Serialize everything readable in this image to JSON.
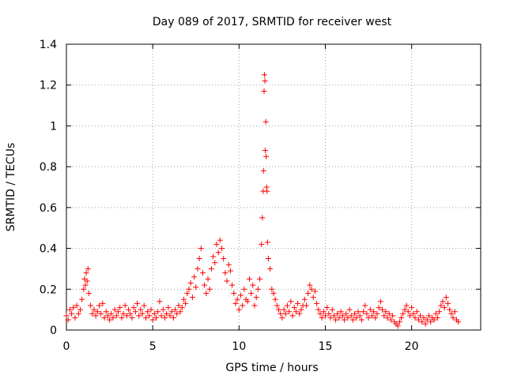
{
  "chart_data": {
    "type": "scatter",
    "title": "Day 089 of 2017, SRMTID for receiver west",
    "xlabel": "GPS time / hours",
    "ylabel": "SRMTID / TECUs",
    "xlim": [
      0,
      24
    ],
    "ylim": [
      0,
      1.4
    ],
    "x_ticks": [
      0,
      5,
      10,
      15,
      20
    ],
    "x_tick_labels": [
      "0",
      "5",
      "10",
      "15",
      "20"
    ],
    "y_ticks": [
      0,
      0.2,
      0.4,
      0.6,
      0.8,
      1.0,
      1.2,
      1.4
    ],
    "y_tick_labels": [
      "0",
      "0.2",
      "0.4",
      "0.6",
      "0.8",
      "1",
      "1.2",
      "1.4"
    ],
    "grid": true,
    "marker": "plus",
    "series": [
      {
        "name": "SRMTID",
        "color": "#ff0000",
        "points": [
          [
            0.0,
            0.07
          ],
          [
            0.1,
            0.05
          ],
          [
            0.2,
            0.1
          ],
          [
            0.3,
            0.08
          ],
          [
            0.4,
            0.11
          ],
          [
            0.5,
            0.06
          ],
          [
            0.6,
            0.12
          ],
          [
            0.7,
            0.08
          ],
          [
            0.8,
            0.1
          ],
          [
            0.9,
            0.15
          ],
          [
            1.0,
            0.2
          ],
          [
            1.05,
            0.25
          ],
          [
            1.1,
            0.22
          ],
          [
            1.15,
            0.28
          ],
          [
            1.2,
            0.24
          ],
          [
            1.25,
            0.3
          ],
          [
            1.3,
            0.18
          ],
          [
            1.4,
            0.12
          ],
          [
            1.5,
            0.08
          ],
          [
            1.6,
            0.1
          ],
          [
            1.7,
            0.07
          ],
          [
            1.8,
            0.09
          ],
          [
            1.9,
            0.12
          ],
          [
            2.0,
            0.08
          ],
          [
            2.1,
            0.13
          ],
          [
            2.2,
            0.06
          ],
          [
            2.3,
            0.09
          ],
          [
            2.4,
            0.07
          ],
          [
            2.5,
            0.05
          ],
          [
            2.6,
            0.08
          ],
          [
            2.7,
            0.06
          ],
          [
            2.8,
            0.1
          ],
          [
            2.9,
            0.07
          ],
          [
            3.0,
            0.09
          ],
          [
            3.1,
            0.11
          ],
          [
            3.2,
            0.06
          ],
          [
            3.3,
            0.08
          ],
          [
            3.4,
            0.12
          ],
          [
            3.5,
            0.07
          ],
          [
            3.6,
            0.1
          ],
          [
            3.7,
            0.08
          ],
          [
            3.8,
            0.06
          ],
          [
            3.9,
            0.11
          ],
          [
            4.0,
            0.09
          ],
          [
            4.1,
            0.13
          ],
          [
            4.2,
            0.07
          ],
          [
            4.3,
            0.1
          ],
          [
            4.4,
            0.08
          ],
          [
            4.5,
            0.12
          ],
          [
            4.6,
            0.06
          ],
          [
            4.7,
            0.09
          ],
          [
            4.8,
            0.07
          ],
          [
            4.9,
            0.1
          ],
          [
            5.0,
            0.05
          ],
          [
            5.1,
            0.08
          ],
          [
            5.2,
            0.06
          ],
          [
            5.3,
            0.09
          ],
          [
            5.4,
            0.14
          ],
          [
            5.5,
            0.07
          ],
          [
            5.6,
            0.1
          ],
          [
            5.7,
            0.06
          ],
          [
            5.8,
            0.08
          ],
          [
            5.9,
            0.11
          ],
          [
            6.0,
            0.07
          ],
          [
            6.1,
            0.09
          ],
          [
            6.2,
            0.06
          ],
          [
            6.3,
            0.1
          ],
          [
            6.4,
            0.08
          ],
          [
            6.5,
            0.12
          ],
          [
            6.6,
            0.09
          ],
          [
            6.7,
            0.11
          ],
          [
            6.8,
            0.15
          ],
          [
            6.9,
            0.13
          ],
          [
            7.0,
            0.18
          ],
          [
            7.1,
            0.2
          ],
          [
            7.2,
            0.23
          ],
          [
            7.3,
            0.16
          ],
          [
            7.4,
            0.26
          ],
          [
            7.5,
            0.21
          ],
          [
            7.6,
            0.3
          ],
          [
            7.7,
            0.35
          ],
          [
            7.8,
            0.4
          ],
          [
            7.9,
            0.28
          ],
          [
            8.0,
            0.22
          ],
          [
            8.1,
            0.18
          ],
          [
            8.2,
            0.25
          ],
          [
            8.3,
            0.2
          ],
          [
            8.4,
            0.3
          ],
          [
            8.5,
            0.36
          ],
          [
            8.6,
            0.33
          ],
          [
            8.7,
            0.42
          ],
          [
            8.8,
            0.38
          ],
          [
            8.9,
            0.44
          ],
          [
            9.0,
            0.4
          ],
          [
            9.1,
            0.35
          ],
          [
            9.2,
            0.28
          ],
          [
            9.3,
            0.24
          ],
          [
            9.4,
            0.32
          ],
          [
            9.5,
            0.29
          ],
          [
            9.6,
            0.22
          ],
          [
            9.7,
            0.18
          ],
          [
            9.8,
            0.13
          ],
          [
            9.9,
            0.15
          ],
          [
            10.0,
            0.1
          ],
          [
            10.1,
            0.17
          ],
          [
            10.2,
            0.12
          ],
          [
            10.3,
            0.2
          ],
          [
            10.4,
            0.15
          ],
          [
            10.5,
            0.14
          ],
          [
            10.6,
            0.25
          ],
          [
            10.7,
            0.18
          ],
          [
            10.8,
            0.22
          ],
          [
            10.9,
            0.12
          ],
          [
            11.0,
            0.16
          ],
          [
            11.1,
            0.2
          ],
          [
            11.2,
            0.25
          ],
          [
            11.3,
            0.42
          ],
          [
            11.35,
            0.55
          ],
          [
            11.4,
            0.68
          ],
          [
            11.42,
            0.78
          ],
          [
            11.45,
            1.17
          ],
          [
            11.47,
            1.25
          ],
          [
            11.5,
            1.22
          ],
          [
            11.52,
            0.88
          ],
          [
            11.55,
            1.02
          ],
          [
            11.57,
            0.85
          ],
          [
            11.6,
            0.7
          ],
          [
            11.62,
            0.68
          ],
          [
            11.65,
            0.43
          ],
          [
            11.7,
            0.35
          ],
          [
            11.8,
            0.3
          ],
          [
            11.9,
            0.2
          ],
          [
            12.0,
            0.18
          ],
          [
            12.1,
            0.15
          ],
          [
            12.2,
            0.12
          ],
          [
            12.3,
            0.1
          ],
          [
            12.4,
            0.08
          ],
          [
            12.5,
            0.06
          ],
          [
            12.6,
            0.1
          ],
          [
            12.7,
            0.08
          ],
          [
            12.8,
            0.12
          ],
          [
            12.9,
            0.09
          ],
          [
            13.0,
            0.14
          ],
          [
            13.1,
            0.07
          ],
          [
            13.2,
            0.11
          ],
          [
            13.3,
            0.09
          ],
          [
            13.4,
            0.13
          ],
          [
            13.5,
            0.08
          ],
          [
            13.6,
            0.1
          ],
          [
            13.7,
            0.12
          ],
          [
            13.8,
            0.15
          ],
          [
            13.9,
            0.12
          ],
          [
            14.0,
            0.18
          ],
          [
            14.1,
            0.22
          ],
          [
            14.2,
            0.2
          ],
          [
            14.3,
            0.16
          ],
          [
            14.4,
            0.19
          ],
          [
            14.5,
            0.13
          ],
          [
            14.6,
            0.1
          ],
          [
            14.7,
            0.08
          ],
          [
            14.8,
            0.06
          ],
          [
            14.9,
            0.09
          ],
          [
            15.0,
            0.07
          ],
          [
            15.1,
            0.11
          ],
          [
            15.2,
            0.08
          ],
          [
            15.3,
            0.06
          ],
          [
            15.4,
            0.1
          ],
          [
            15.5,
            0.07
          ],
          [
            15.6,
            0.05
          ],
          [
            15.7,
            0.08
          ],
          [
            15.8,
            0.06
          ],
          [
            15.9,
            0.09
          ],
          [
            16.0,
            0.07
          ],
          [
            16.1,
            0.05
          ],
          [
            16.2,
            0.08
          ],
          [
            16.3,
            0.06
          ],
          [
            16.4,
            0.1
          ],
          [
            16.5,
            0.07
          ],
          [
            16.6,
            0.05
          ],
          [
            16.7,
            0.08
          ],
          [
            16.8,
            0.06
          ],
          [
            16.9,
            0.09
          ],
          [
            17.0,
            0.07
          ],
          [
            17.1,
            0.05
          ],
          [
            17.2,
            0.09
          ],
          [
            17.3,
            0.12
          ],
          [
            17.4,
            0.08
          ],
          [
            17.5,
            0.06
          ],
          [
            17.6,
            0.1
          ],
          [
            17.7,
            0.07
          ],
          [
            17.8,
            0.09
          ],
          [
            17.9,
            0.06
          ],
          [
            18.0,
            0.08
          ],
          [
            18.1,
            0.11
          ],
          [
            18.2,
            0.14
          ],
          [
            18.3,
            0.1
          ],
          [
            18.4,
            0.07
          ],
          [
            18.5,
            0.09
          ],
          [
            18.6,
            0.06
          ],
          [
            18.7,
            0.08
          ],
          [
            18.8,
            0.05
          ],
          [
            18.9,
            0.07
          ],
          [
            19.0,
            0.04
          ],
          [
            19.1,
            0.03
          ],
          [
            19.2,
            0.02
          ],
          [
            19.3,
            0.04
          ],
          [
            19.4,
            0.06
          ],
          [
            19.5,
            0.08
          ],
          [
            19.6,
            0.1
          ],
          [
            19.7,
            0.12
          ],
          [
            19.8,
            0.09
          ],
          [
            19.9,
            0.07
          ],
          [
            20.0,
            0.11
          ],
          [
            20.1,
            0.08
          ],
          [
            20.2,
            0.06
          ],
          [
            20.3,
            0.09
          ],
          [
            20.4,
            0.05
          ],
          [
            20.5,
            0.07
          ],
          [
            20.6,
            0.04
          ],
          [
            20.7,
            0.06
          ],
          [
            20.8,
            0.03
          ],
          [
            20.9,
            0.05
          ],
          [
            21.0,
            0.07
          ],
          [
            21.1,
            0.04
          ],
          [
            21.2,
            0.06
          ],
          [
            21.3,
            0.05
          ],
          [
            21.4,
            0.08
          ],
          [
            21.5,
            0.06
          ],
          [
            21.6,
            0.09
          ],
          [
            21.7,
            0.12
          ],
          [
            21.8,
            0.14
          ],
          [
            21.9,
            0.11
          ],
          [
            22.0,
            0.16
          ],
          [
            22.1,
            0.13
          ],
          [
            22.2,
            0.1
          ],
          [
            22.3,
            0.08
          ],
          [
            22.4,
            0.06
          ],
          [
            22.5,
            0.09
          ],
          [
            22.6,
            0.05
          ],
          [
            22.7,
            0.04
          ]
        ]
      }
    ]
  }
}
